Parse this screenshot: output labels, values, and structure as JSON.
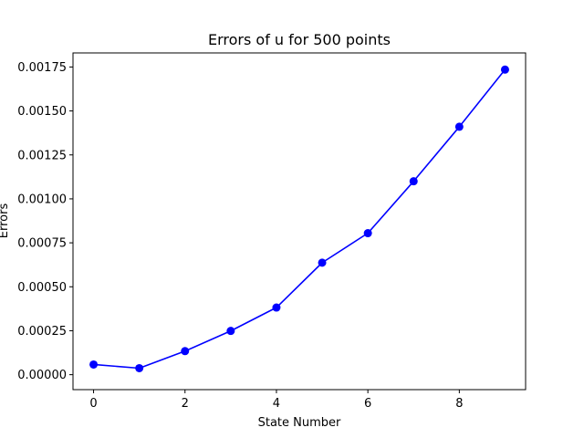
{
  "chart_data": {
    "type": "line",
    "title": "Errors of u for 500 points",
    "xlabel": "State Number",
    "ylabel": "Errors",
    "xlim": [
      -0.45,
      9.45
    ],
    "ylim": [
      -8.5e-05,
      0.00183
    ],
    "x_ticks": [
      0,
      2,
      4,
      6,
      8
    ],
    "x_tick_labels": [
      "0",
      "2",
      "4",
      "6",
      "8"
    ],
    "y_ticks": [
      0,
      0.00025,
      0.0005,
      0.00075,
      0.001,
      0.00125,
      0.0015,
      0.00175
    ],
    "y_tick_labels": [
      "0.00000",
      "0.00025",
      "0.00050",
      "0.00075",
      "0.00100",
      "0.00125",
      "0.00150",
      "0.00175"
    ],
    "grid": false,
    "series": [
      {
        "color": "#0000ff",
        "marker": "circle",
        "x": [
          0,
          1,
          2,
          3,
          4,
          5,
          6,
          7,
          8,
          9
        ],
        "values": [
          5.8e-05,
          3.7e-05,
          0.000134,
          0.000249,
          0.000382,
          0.000637,
          0.000805,
          0.0011,
          0.00141,
          0.001735
        ]
      }
    ]
  }
}
